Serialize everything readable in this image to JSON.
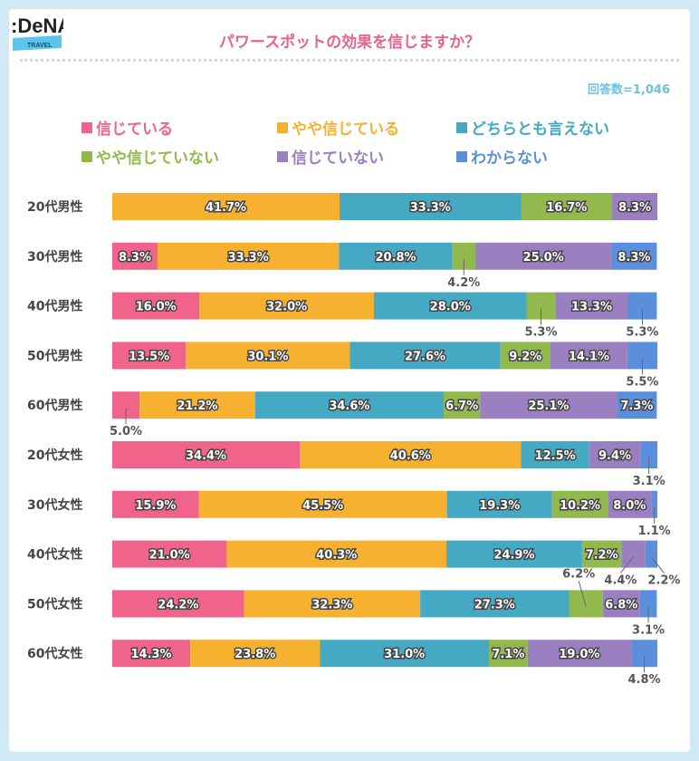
{
  "chart_data": {
    "type": "bar",
    "orientation": "horizontal-stacked-100",
    "title": "パワースポットの効果を信じますか？",
    "note": "回答数=1,046",
    "legend_placement": "top",
    "categories": [
      "20代男性",
      "30代男性",
      "40代男性",
      "50代男性",
      "60代男性",
      "20代女性",
      "30代女性",
      "40代女性",
      "50代女性",
      "60代女性"
    ],
    "series": [
      {
        "name": "信じている",
        "color": "#f0648c",
        "values": [
          0,
          8.3,
          16.0,
          13.5,
          5.0,
          34.4,
          15.9,
          21.0,
          24.2,
          14.3
        ]
      },
      {
        "name": "やや信じている",
        "color": "#f6b130",
        "values": [
          41.7,
          33.3,
          32.0,
          30.1,
          21.2,
          40.6,
          45.5,
          40.3,
          32.3,
          23.8
        ]
      },
      {
        "name": "どちらとも言えない",
        "color": "#45a9c4",
        "values": [
          33.3,
          20.8,
          28.0,
          27.6,
          34.6,
          12.5,
          19.3,
          24.9,
          27.3,
          31.0
        ]
      },
      {
        "name": "やや信じていない",
        "color": "#92b94e",
        "values": [
          16.7,
          4.2,
          5.3,
          9.2,
          6.7,
          0,
          10.2,
          7.2,
          6.2,
          7.1
        ]
      },
      {
        "name": "信じていない",
        "color": "#9a7fc1",
        "values": [
          8.3,
          25.0,
          13.3,
          14.1,
          25.1,
          9.4,
          8.0,
          4.4,
          6.8,
          19.0
        ]
      },
      {
        "name": "わからない",
        "color": "#5b8fdc",
        "values": [
          0,
          8.3,
          5.3,
          5.5,
          7.3,
          3.1,
          1.1,
          2.2,
          3.1,
          4.8
        ]
      }
    ],
    "label_unit": "%",
    "xlim": [
      0,
      100
    ],
    "grid": false
  },
  "logo": {
    "text": ":DeNA",
    "sub": "TRAVEL"
  }
}
